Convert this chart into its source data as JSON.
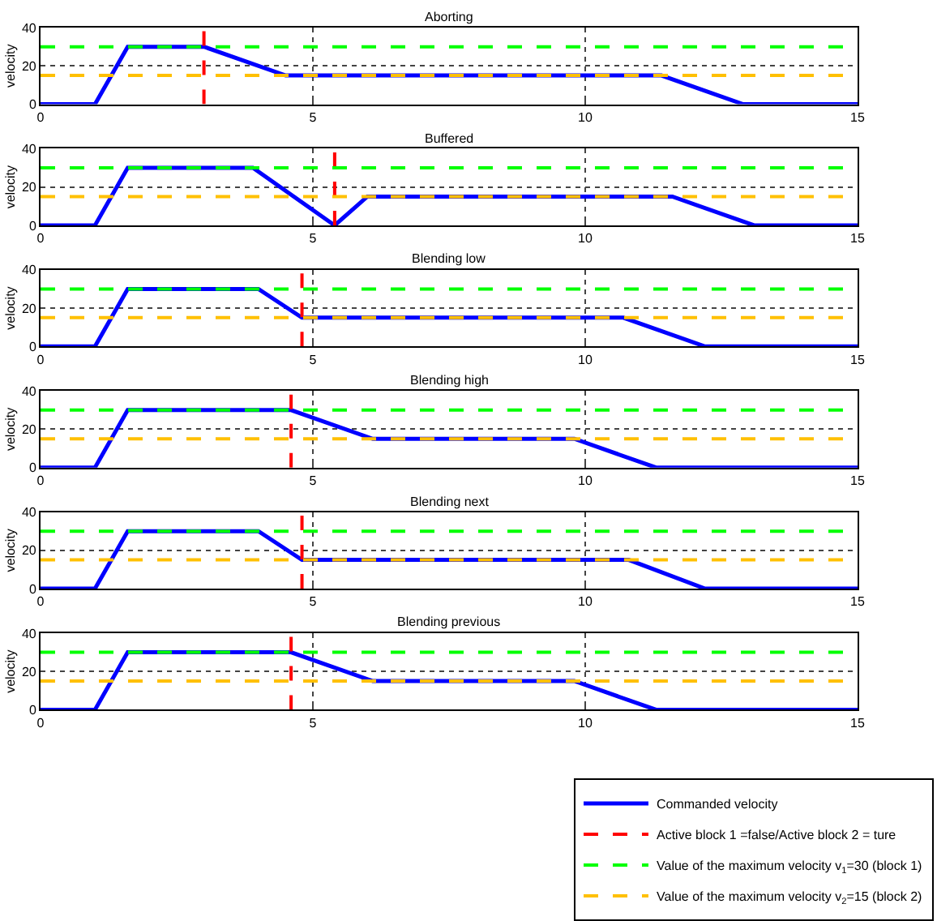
{
  "chart_data": [
    {
      "type": "line",
      "title": "Aborting",
      "ylabel": "velocity",
      "xlim": [
        0,
        15
      ],
      "xticks": [
        0,
        5,
        10,
        15
      ],
      "ylim": [
        0,
        40
      ],
      "yticks": [
        0,
        20,
        40
      ],
      "grid": true,
      "tick_labels": "xy",
      "series": [
        {
          "color": "#0000ff",
          "line_style": "solid",
          "x": [
            0,
            1.0,
            1.6,
            3.0,
            4.5,
            11.4,
            12.9,
            15
          ],
          "values": [
            0,
            0,
            30,
            30,
            15,
            15,
            0,
            0
          ]
        }
      ],
      "ref_lines": [
        {
          "axis": "x",
          "value": 3.0,
          "color": "#ff0000",
          "line_style": "dashed"
        },
        {
          "axis": "y",
          "value": 30,
          "color": "#00ff00",
          "line_style": "dashed"
        },
        {
          "axis": "y",
          "value": 15,
          "color": "#ffc000",
          "line_style": "dashed"
        }
      ]
    },
    {
      "type": "line",
      "title": "Buffered",
      "ylabel": "velocity",
      "xlim": [
        0,
        15
      ],
      "xticks": [
        0,
        5,
        10,
        15
      ],
      "ylim": [
        0,
        40
      ],
      "yticks": [
        0,
        20,
        40
      ],
      "grid": true,
      "series": [
        {
          "color": "#0000ff",
          "line_style": "solid",
          "x": [
            0,
            1.0,
            1.6,
            3.9,
            5.4,
            6.0,
            11.6,
            13.1,
            15
          ],
          "values": [
            0,
            0,
            30,
            30,
            0,
            15,
            15,
            0,
            0
          ]
        }
      ],
      "ref_lines": [
        {
          "axis": "x",
          "value": 5.4,
          "color": "#ff0000",
          "line_style": "dashed"
        },
        {
          "axis": "y",
          "value": 30,
          "color": "#00ff00",
          "line_style": "dashed"
        },
        {
          "axis": "y",
          "value": 15,
          "color": "#ffc000",
          "line_style": "dashed"
        }
      ]
    },
    {
      "type": "line",
      "title": "Blending low",
      "ylabel": "velocity",
      "xlim": [
        0,
        15
      ],
      "xticks": [
        0,
        5,
        10,
        15
      ],
      "ylim": [
        0,
        40
      ],
      "yticks": [
        0,
        20,
        40
      ],
      "grid": true,
      "series": [
        {
          "color": "#0000ff",
          "line_style": "solid",
          "x": [
            0,
            1.0,
            1.6,
            4.0,
            4.8,
            10.7,
            12.2,
            15
          ],
          "values": [
            0,
            0,
            30,
            30,
            15,
            15,
            0,
            0
          ]
        }
      ],
      "ref_lines": [
        {
          "axis": "x",
          "value": 4.8,
          "color": "#ff0000",
          "line_style": "dashed"
        },
        {
          "axis": "y",
          "value": 30,
          "color": "#00ff00",
          "line_style": "dashed"
        },
        {
          "axis": "y",
          "value": 15,
          "color": "#ffc000",
          "line_style": "dashed"
        }
      ]
    },
    {
      "type": "line",
      "title": "Blending high",
      "ylabel": "velocity",
      "xlim": [
        0,
        15
      ],
      "xticks": [
        0,
        5,
        10,
        15
      ],
      "ylim": [
        0,
        40
      ],
      "yticks": [
        0,
        20,
        40
      ],
      "grid": true,
      "series": [
        {
          "color": "#0000ff",
          "line_style": "solid",
          "x": [
            0,
            1.0,
            1.6,
            4.6,
            6.1,
            9.8,
            11.3,
            15
          ],
          "values": [
            0,
            0,
            30,
            30,
            15,
            15,
            0,
            0
          ]
        }
      ],
      "ref_lines": [
        {
          "axis": "x",
          "value": 4.6,
          "color": "#ff0000",
          "line_style": "dashed"
        },
        {
          "axis": "y",
          "value": 30,
          "color": "#00ff00",
          "line_style": "dashed"
        },
        {
          "axis": "y",
          "value": 15,
          "color": "#ffc000",
          "line_style": "dashed"
        }
      ]
    },
    {
      "type": "line",
      "title": "Blending next",
      "ylabel": "velocity",
      "xlim": [
        0,
        15
      ],
      "xticks": [
        0,
        5,
        10,
        15
      ],
      "ylim": [
        0,
        40
      ],
      "yticks": [
        0,
        20,
        40
      ],
      "grid": true,
      "series": [
        {
          "color": "#0000ff",
          "line_style": "solid",
          "x": [
            0,
            1.0,
            1.6,
            4.0,
            4.8,
            10.8,
            12.2,
            15
          ],
          "values": [
            0,
            0,
            30,
            30,
            15,
            15,
            0,
            0
          ]
        }
      ],
      "ref_lines": [
        {
          "axis": "x",
          "value": 4.8,
          "color": "#ff0000",
          "line_style": "dashed"
        },
        {
          "axis": "y",
          "value": 30,
          "color": "#00ff00",
          "line_style": "dashed"
        },
        {
          "axis": "y",
          "value": 15,
          "color": "#ffc000",
          "line_style": "dashed"
        }
      ]
    },
    {
      "type": "line",
      "title": "Blending previous",
      "ylabel": "velocity",
      "xlim": [
        0,
        15
      ],
      "xticks": [
        0,
        5,
        10,
        15
      ],
      "ylim": [
        0,
        40
      ],
      "yticks": [
        0,
        20,
        40
      ],
      "grid": true,
      "legend": "bottom right",
      "series": [
        {
          "name": "Commanded velocity",
          "color": "#0000ff",
          "line_style": "solid",
          "x": [
            0,
            1.0,
            1.6,
            4.6,
            6.1,
            9.8,
            11.3,
            15
          ],
          "values": [
            0,
            0,
            30,
            30,
            15,
            15,
            0,
            0
          ]
        }
      ],
      "ref_lines": [
        {
          "axis": "x",
          "value": 4.6,
          "label": "Active block 1 =false/Active block 2 = ture",
          "color": "#ff0000",
          "line_style": "dashed"
        },
        {
          "axis": "y",
          "value": 30,
          "label": "Value of the maximum velocity v$_{1}$=30 (block 1)",
          "color": "#00ff00",
          "line_style": "dashed"
        },
        {
          "axis": "y",
          "value": 15,
          "label": "Value of the maximum velocity v$_{2}$=15 (block 2)",
          "color": "#ffc000",
          "line_style": "dashed"
        }
      ]
    }
  ]
}
